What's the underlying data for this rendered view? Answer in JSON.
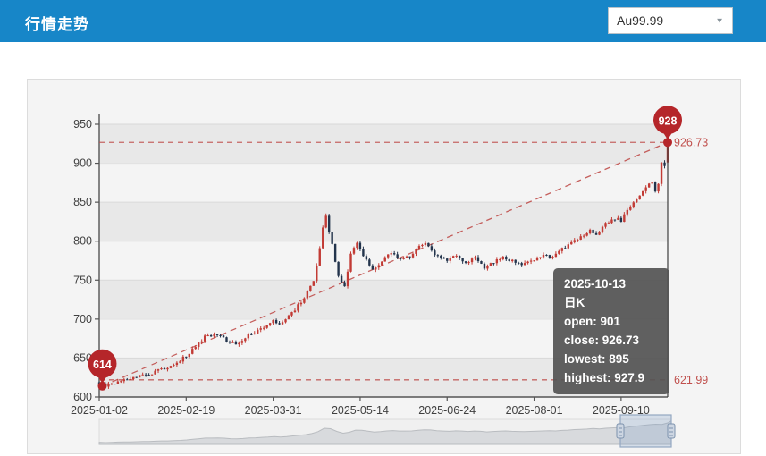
{
  "header": {
    "title": "行情走势",
    "instrument_select": {
      "value": "Au99.99"
    }
  },
  "tooltip": {
    "lines": [
      "2025-10-13",
      "日K",
      "open: 901",
      "close: 926.73",
      "lowest: 895",
      "highest: 927.9"
    ]
  },
  "chart_data": {
    "type": "candlestick",
    "series_name": "日K",
    "x_tick_labels": [
      "2025-01-02",
      "2025-02-19",
      "2025-03-31",
      "2025-05-14",
      "2025-06-24",
      "2025-08-01",
      "2025-09-10"
    ],
    "x_tick_indices": [
      0,
      28,
      56,
      84,
      112,
      140,
      168
    ],
    "num_candles": 184,
    "y_ticks": [
      600,
      650,
      700,
      750,
      800,
      850,
      900,
      950
    ],
    "y_range": [
      600,
      950
    ],
    "close_anchors": [
      [
        0,
        617
      ],
      [
        2,
        614
      ],
      [
        6,
        620
      ],
      [
        12,
        626
      ],
      [
        18,
        632
      ],
      [
        24,
        641
      ],
      [
        28,
        653
      ],
      [
        31,
        666
      ],
      [
        34,
        677
      ],
      [
        38,
        681
      ],
      [
        41,
        673
      ],
      [
        44,
        668
      ],
      [
        47,
        676
      ],
      [
        51,
        686
      ],
      [
        56,
        697
      ],
      [
        58,
        692
      ],
      [
        61,
        704
      ],
      [
        64,
        717
      ],
      [
        67,
        734
      ],
      [
        69,
        748
      ],
      [
        71,
        792
      ],
      [
        72,
        816
      ],
      [
        73,
        831
      ],
      [
        75,
        796
      ],
      [
        77,
        754
      ],
      [
        79,
        742
      ],
      [
        81,
        783
      ],
      [
        83,
        799
      ],
      [
        85,
        781
      ],
      [
        88,
        764
      ],
      [
        91,
        774
      ],
      [
        94,
        785
      ],
      [
        97,
        776
      ],
      [
        100,
        781
      ],
      [
        103,
        793
      ],
      [
        105,
        797
      ],
      [
        107,
        786
      ],
      [
        110,
        778
      ],
      [
        112,
        775
      ],
      [
        115,
        783
      ],
      [
        118,
        772
      ],
      [
        121,
        779
      ],
      [
        124,
        765
      ],
      [
        127,
        773
      ],
      [
        130,
        780
      ],
      [
        133,
        774
      ],
      [
        136,
        770
      ],
      [
        140,
        777
      ],
      [
        143,
        784
      ],
      [
        146,
        778
      ],
      [
        149,
        790
      ],
      [
        152,
        797
      ],
      [
        155,
        805
      ],
      [
        158,
        815
      ],
      [
        160,
        809
      ],
      [
        163,
        823
      ],
      [
        166,
        829
      ],
      [
        168,
        827
      ],
      [
        170,
        839
      ],
      [
        172,
        849
      ],
      [
        174,
        859
      ],
      [
        176,
        869
      ],
      [
        178,
        875
      ],
      [
        179,
        863
      ],
      [
        180,
        873
      ],
      [
        181,
        900
      ],
      [
        182,
        897
      ],
      [
        183,
        926.73
      ]
    ],
    "last_candle": {
      "date": "2025-10-13",
      "open": 901,
      "close": 926.73,
      "lowest": 895,
      "highest": 927.9
    },
    "min_marker": {
      "label": "614",
      "value": 614,
      "index": 1
    },
    "max_marker": {
      "label": "928",
      "value": 926.73
    },
    "reference_lines": {
      "upper": 926.73,
      "lower": 621.99
    },
    "upper_label": "926.73",
    "lower_label": "621.99",
    "colors": {
      "up": "#c23b35",
      "down": "#23344c",
      "marker": "#b5262a",
      "dashed": "#c0504d",
      "axis": "#555555",
      "grid_band": "#e8e8e8",
      "label": "#404040",
      "nav_fill": "#d8dadd",
      "nav_line": "#b9bcc0",
      "nav_sel": "#93a7c1"
    }
  }
}
